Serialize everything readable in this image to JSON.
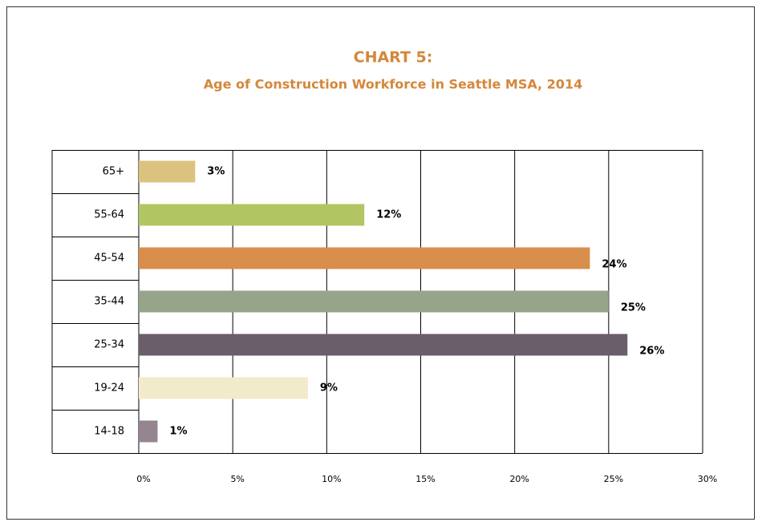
{
  "chart_data": {
    "type": "bar",
    "orientation": "horizontal",
    "title": "CHART 5:",
    "subtitle": "Age of Construction Workforce in Seattle MSA, 2014",
    "categories": [
      "65+",
      "55-64",
      "45-54",
      "35-44",
      "25-34",
      "19-24",
      "14-18"
    ],
    "values": [
      3,
      12,
      24,
      25,
      26,
      9,
      1
    ],
    "value_labels": [
      "3%",
      "12%",
      "24%",
      "25%",
      "26%",
      "9%",
      "1%"
    ],
    "colors": [
      "#dbc27e",
      "#b1c563",
      "#d98e4b",
      "#96a48a",
      "#6b5e6b",
      "#f3e9cb",
      "#948590"
    ],
    "xlim": [
      0,
      30
    ],
    "xticks": [
      {
        "value": 0,
        "label": "0%"
      },
      {
        "value": 5,
        "label": "5%"
      },
      {
        "value": 10,
        "label": "10%"
      },
      {
        "value": 15,
        "label": "15%"
      },
      {
        "value": 20,
        "label": "20%"
      },
      {
        "value": 25,
        "label": "25%"
      },
      {
        "value": 30,
        "label": "30%"
      }
    ],
    "grid": true
  }
}
